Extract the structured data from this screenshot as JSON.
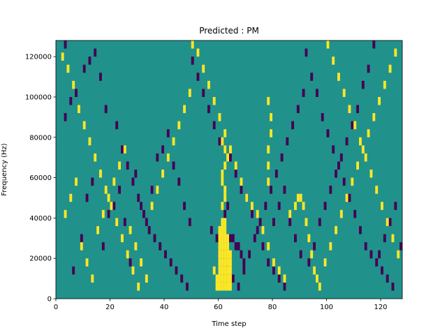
{
  "chart_data": {
    "type": "heatmap",
    "title": "Predicted : PM",
    "xlabel": "Time step",
    "ylabel": "Frequency (Hz)",
    "xlim": [
      0,
      128
    ],
    "ylim": [
      0,
      128000
    ],
    "x_ticks": [
      0,
      20,
      40,
      60,
      80,
      100,
      120
    ],
    "y_ticks": [
      0,
      20000,
      40000,
      60000,
      80000,
      100000,
      120000
    ],
    "x_tick_labels": [
      "0",
      "20",
      "40",
      "60",
      "80",
      "100",
      "120"
    ],
    "y_tick_labels": [
      "0",
      "20000",
      "40000",
      "60000",
      "80000",
      "100000",
      "120000"
    ],
    "grid": false,
    "colormap": "viridis",
    "levels": {
      "low": -1,
      "mid": 0,
      "high": 1
    },
    "colors": {
      "low": "#440154",
      "mid": "#21918c",
      "high": "#fde725"
    },
    "background_level": 0,
    "cell_height_hz": 4000,
    "cells_low": [
      [
        3,
        124000
      ],
      [
        3,
        88000
      ],
      [
        5,
        96000
      ],
      [
        7,
        100000
      ],
      [
        10,
        112000
      ],
      [
        12,
        116000
      ],
      [
        14,
        120000
      ],
      [
        16,
        108000
      ],
      [
        18,
        92000
      ],
      [
        22,
        84000
      ],
      [
        24,
        72000
      ],
      [
        26,
        64000
      ],
      [
        28,
        56000
      ],
      [
        30,
        48000
      ],
      [
        32,
        40000
      ],
      [
        34,
        32000
      ],
      [
        36,
        28000
      ],
      [
        38,
        24000
      ],
      [
        40,
        20000
      ],
      [
        42,
        16000
      ],
      [
        44,
        12000
      ],
      [
        46,
        8000
      ],
      [
        48,
        4000
      ],
      [
        6,
        12000
      ],
      [
        9,
        28000
      ],
      [
        11,
        48000
      ],
      [
        13,
        56000
      ],
      [
        15,
        32000
      ],
      [
        17,
        24000
      ],
      [
        19,
        40000
      ],
      [
        21,
        44000
      ],
      [
        23,
        52000
      ],
      [
        25,
        36000
      ],
      [
        27,
        16000
      ],
      [
        29,
        60000
      ],
      [
        31,
        44000
      ],
      [
        33,
        36000
      ],
      [
        35,
        52000
      ],
      [
        37,
        68000
      ],
      [
        39,
        72000
      ],
      [
        41,
        80000
      ],
      [
        43,
        64000
      ],
      [
        45,
        56000
      ],
      [
        47,
        44000
      ],
      [
        49,
        36000
      ],
      [
        50,
        116000
      ],
      [
        52,
        108000
      ],
      [
        54,
        100000
      ],
      [
        56,
        92000
      ],
      [
        58,
        84000
      ],
      [
        60,
        76000
      ],
      [
        62,
        72000
      ],
      [
        64,
        68000
      ],
      [
        66,
        60000
      ],
      [
        68,
        52000
      ],
      [
        70,
        48000
      ],
      [
        72,
        40000
      ],
      [
        74,
        32000
      ],
      [
        76,
        24000
      ],
      [
        78,
        16000
      ],
      [
        80,
        12000
      ],
      [
        82,
        8000
      ],
      [
        84,
        4000
      ],
      [
        57,
        32000
      ],
      [
        59,
        28000
      ],
      [
        61,
        20000
      ],
      [
        63,
        14000
      ],
      [
        65,
        8000
      ],
      [
        67,
        4000
      ],
      [
        69,
        12000
      ],
      [
        71,
        20000
      ],
      [
        73,
        28000
      ],
      [
        75,
        36000
      ],
      [
        77,
        44000
      ],
      [
        79,
        52000
      ],
      [
        81,
        60000
      ],
      [
        83,
        68000
      ],
      [
        85,
        76000
      ],
      [
        87,
        84000
      ],
      [
        89,
        92000
      ],
      [
        91,
        100000
      ],
      [
        92,
        120000
      ],
      [
        94,
        108000
      ],
      [
        96,
        100000
      ],
      [
        98,
        88000
      ],
      [
        100,
        80000
      ],
      [
        102,
        72000
      ],
      [
        104,
        64000
      ],
      [
        106,
        56000
      ],
      [
        108,
        48000
      ],
      [
        110,
        40000
      ],
      [
        112,
        32000
      ],
      [
        114,
        24000
      ],
      [
        116,
        20000
      ],
      [
        118,
        16000
      ],
      [
        120,
        12000
      ],
      [
        122,
        8000
      ],
      [
        124,
        4000
      ],
      [
        93,
        16000
      ],
      [
        95,
        24000
      ],
      [
        97,
        36000
      ],
      [
        99,
        44000
      ],
      [
        101,
        52000
      ],
      [
        103,
        60000
      ],
      [
        105,
        68000
      ],
      [
        107,
        76000
      ],
      [
        109,
        84000
      ],
      [
        111,
        92000
      ],
      [
        113,
        104000
      ],
      [
        115,
        112000
      ],
      [
        117,
        124000
      ],
      [
        119,
        20000
      ],
      [
        121,
        28000
      ],
      [
        123,
        36000
      ],
      [
        125,
        44000
      ],
      [
        127,
        24000
      ],
      [
        64,
        28000
      ],
      [
        65,
        28000
      ],
      [
        66,
        24000
      ],
      [
        67,
        24000
      ],
      [
        68,
        20000
      ],
      [
        69,
        16000
      ],
      [
        62,
        40000
      ],
      [
        63,
        44000
      ],
      [
        86,
        36000
      ],
      [
        88,
        28000
      ],
      [
        90,
        20000
      ],
      [
        80,
        36000
      ],
      [
        82,
        44000
      ],
      [
        84,
        52000
      ]
    ],
    "cells_high": [
      [
        2,
        118000
      ],
      [
        4,
        112000
      ],
      [
        6,
        104000
      ],
      [
        8,
        92000
      ],
      [
        10,
        84000
      ],
      [
        12,
        76000
      ],
      [
        14,
        68000
      ],
      [
        16,
        60000
      ],
      [
        18,
        52000
      ],
      [
        20,
        44000
      ],
      [
        22,
        36000
      ],
      [
        24,
        28000
      ],
      [
        26,
        20000
      ],
      [
        28,
        12000
      ],
      [
        30,
        4000
      ],
      [
        3,
        40000
      ],
      [
        5,
        48000
      ],
      [
        7,
        56000
      ],
      [
        9,
        24000
      ],
      [
        11,
        16000
      ],
      [
        13,
        8000
      ],
      [
        15,
        32000
      ],
      [
        17,
        40000
      ],
      [
        19,
        48000
      ],
      [
        21,
        56000
      ],
      [
        23,
        64000
      ],
      [
        25,
        72000
      ],
      [
        27,
        32000
      ],
      [
        29,
        24000
      ],
      [
        31,
        16000
      ],
      [
        33,
        8000
      ],
      [
        35,
        44000
      ],
      [
        37,
        52000
      ],
      [
        39,
        60000
      ],
      [
        41,
        68000
      ],
      [
        43,
        76000
      ],
      [
        45,
        84000
      ],
      [
        47,
        92000
      ],
      [
        49,
        100000
      ],
      [
        50,
        124000
      ],
      [
        52,
        120000
      ],
      [
        54,
        112000
      ],
      [
        56,
        104000
      ],
      [
        58,
        96000
      ],
      [
        60,
        88000
      ],
      [
        62,
        80000
      ],
      [
        64,
        72000
      ],
      [
        66,
        64000
      ],
      [
        68,
        56000
      ],
      [
        70,
        48000
      ],
      [
        72,
        44000
      ],
      [
        74,
        40000
      ],
      [
        76,
        32000
      ],
      [
        78,
        24000
      ],
      [
        80,
        16000
      ],
      [
        82,
        12000
      ],
      [
        84,
        8000
      ],
      [
        60,
        4000
      ],
      [
        60,
        8000
      ],
      [
        60,
        12000
      ],
      [
        60,
        16000
      ],
      [
        60,
        20000
      ],
      [
        60,
        24000
      ],
      [
        60,
        28000
      ],
      [
        60,
        32000
      ],
      [
        61,
        4000
      ],
      [
        61,
        8000
      ],
      [
        61,
        12000
      ],
      [
        61,
        16000
      ],
      [
        61,
        20000
      ],
      [
        61,
        24000
      ],
      [
        61,
        28000
      ],
      [
        61,
        32000
      ],
      [
        61,
        36000
      ],
      [
        62,
        4000
      ],
      [
        62,
        8000
      ],
      [
        62,
        12000
      ],
      [
        62,
        16000
      ],
      [
        62,
        20000
      ],
      [
        62,
        24000
      ],
      [
        62,
        28000
      ],
      [
        62,
        32000
      ],
      [
        62,
        36000
      ],
      [
        63,
        4000
      ],
      [
        63,
        8000
      ],
      [
        63,
        12000
      ],
      [
        63,
        16000
      ],
      [
        63,
        20000
      ],
      [
        63,
        24000
      ],
      [
        63,
        28000
      ],
      [
        64,
        4000
      ],
      [
        64,
        8000
      ],
      [
        64,
        12000
      ],
      [
        64,
        16000
      ],
      [
        64,
        20000
      ],
      [
        59,
        4000
      ],
      [
        59,
        8000
      ],
      [
        58,
        12000
      ],
      [
        61,
        44000
      ],
      [
        62,
        48000
      ],
      [
        62,
        52000
      ],
      [
        61,
        56000
      ],
      [
        61,
        60000
      ],
      [
        62,
        64000
      ],
      [
        63,
        68000
      ],
      [
        62,
        72000
      ],
      [
        61,
        76000
      ],
      [
        78,
        56000
      ],
      [
        78,
        64000
      ],
      [
        78,
        72000
      ],
      [
        79,
        80000
      ],
      [
        79,
        88000
      ],
      [
        78,
        96000
      ],
      [
        86,
        40000
      ],
      [
        88,
        44000
      ],
      [
        89,
        48000
      ],
      [
        90,
        48000
      ],
      [
        91,
        44000
      ],
      [
        92,
        36000
      ],
      [
        93,
        28000
      ],
      [
        94,
        20000
      ],
      [
        95,
        12000
      ],
      [
        96,
        8000
      ],
      [
        97,
        4000
      ],
      [
        100,
        124000
      ],
      [
        102,
        116000
      ],
      [
        104,
        108000
      ],
      [
        106,
        100000
      ],
      [
        108,
        92000
      ],
      [
        110,
        84000
      ],
      [
        112,
        76000
      ],
      [
        114,
        68000
      ],
      [
        116,
        60000
      ],
      [
        118,
        52000
      ],
      [
        120,
        44000
      ],
      [
        122,
        36000
      ],
      [
        124,
        28000
      ],
      [
        126,
        20000
      ],
      [
        99,
        16000
      ],
      [
        101,
        24000
      ],
      [
        103,
        32000
      ],
      [
        105,
        40000
      ],
      [
        107,
        48000
      ],
      [
        109,
        56000
      ],
      [
        111,
        64000
      ],
      [
        113,
        72000
      ],
      [
        115,
        80000
      ],
      [
        117,
        88000
      ],
      [
        119,
        96000
      ],
      [
        121,
        104000
      ],
      [
        123,
        112000
      ],
      [
        125,
        120000
      ]
    ]
  }
}
